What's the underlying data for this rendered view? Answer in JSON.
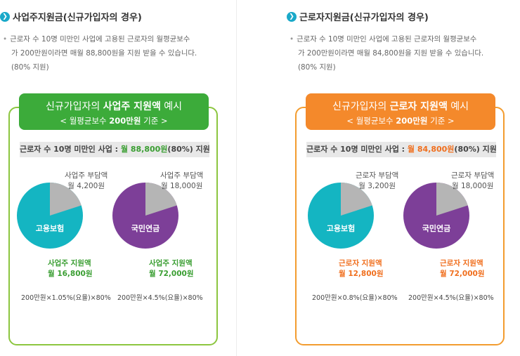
{
  "colors": {
    "accent_teal": "#1aa9c9",
    "employer_green": "#3cab3a",
    "worker_orange": "#f4892b",
    "pie_teal": "#14b5c2",
    "pie_purple": "#7d3f98",
    "pie_gray": "#b5b5b5"
  },
  "left": {
    "heading": "사업주지원금(신규가입자의 경우)",
    "desc_line1": "근로자 수 10명 미만인 사업에 고용된 근로자의 월평균보수",
    "desc_line2": "가 200만원이라면 매월 88,800원을 지원 받을 수 있습니다.",
    "desc_line3": "(80% 지원)",
    "banner_pre": "신규가입자의 ",
    "banner_bold": "사업주 지원액",
    "banner_post": " 예시",
    "banner_sub_pre": "< 월평균보수 ",
    "banner_sub_bold": "200만원",
    "banner_sub_post": " 기준 >",
    "summary_pre": "근로자 수 10명 미만인 사업 : ",
    "summary_hl": "월 88,800원",
    "summary_post": "(80%) 지원",
    "pie1": {
      "name": "고용보험",
      "burden_label": "사업주 부담액",
      "burden_amount": "월 4,200원",
      "support_label": "사업주 지원액",
      "support_amount": "월 16,800원",
      "burden_fraction": 0.2
    },
    "pie2": {
      "name": "국민연금",
      "burden_label": "사업주 부담액",
      "burden_amount": "월 18,000원",
      "support_label": "사업주 지원액",
      "support_amount": "월 72,000원",
      "burden_fraction": 0.2
    },
    "formula1": "200만원×1.05%(요율)×80%",
    "formula2": "200만원×4.5%(요율)×80%"
  },
  "right": {
    "heading": "근로자지원금(신규가입자의 경우)",
    "desc_line1": "근로자 수 10명 미만인 사업에 고용된 근로자의 월평균보수",
    "desc_line2": "가 200만원이라면 매월 84,800원을 지원 받을 수 있습니다.",
    "desc_line3": "(80% 지원)",
    "banner_pre": "신규가입자의 ",
    "banner_bold": "근로자 지원액",
    "banner_post": " 예시",
    "banner_sub_pre": "< 월평균보수 ",
    "banner_sub_bold": "200만원",
    "banner_sub_post": " 기준 >",
    "summary_pre": "근로자 수 10명 미만인 사업 : ",
    "summary_hl": "월 84,800원",
    "summary_post": "(80%) 지원",
    "pie1": {
      "name": "고용보험",
      "burden_label": "근로자 부담액",
      "burden_amount": "월 3,200원",
      "support_label": "근로자 지원액",
      "support_amount": "월 12,800원",
      "burden_fraction": 0.2
    },
    "pie2": {
      "name": "국민연금",
      "burden_label": "근로자 부담액",
      "burden_amount": "월 18,000원",
      "support_label": "근로자 지원액",
      "support_amount": "월 72,000원",
      "burden_fraction": 0.2
    },
    "formula1": "200만원×0.8%(요율)×80%",
    "formula2": "200만원×4.5%(요율)×80%"
  }
}
